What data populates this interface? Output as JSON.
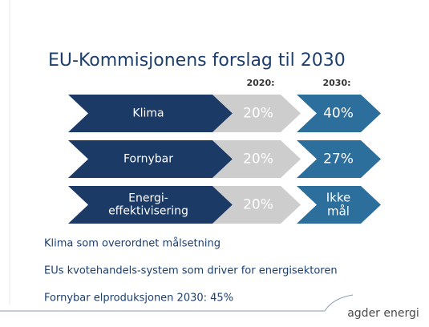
{
  "title": "EU-Kommisjonens forslag til 2030",
  "columns": [
    "2020:",
    "2030:"
  ],
  "rows": [
    {
      "label": [
        "Klima"
      ],
      "v2020": [
        "20%"
      ],
      "v2030": [
        "40%"
      ]
    },
    {
      "label": [
        "Fornybar"
      ],
      "v2020": [
        "20%"
      ],
      "v2030": [
        "27%"
      ]
    },
    {
      "label": [
        "Energi-",
        "effektivisering"
      ],
      "v2020": [
        "20%"
      ],
      "v2030": [
        "Ikke",
        "mål"
      ]
    }
  ],
  "bullets": [
    "Klima som overordnet målsetning",
    "EUs kvotehandels-system som driver for energisektoren",
    "Fornybar elproduksjonen 2030: 45%"
  ],
  "logo": "agder energi"
}
